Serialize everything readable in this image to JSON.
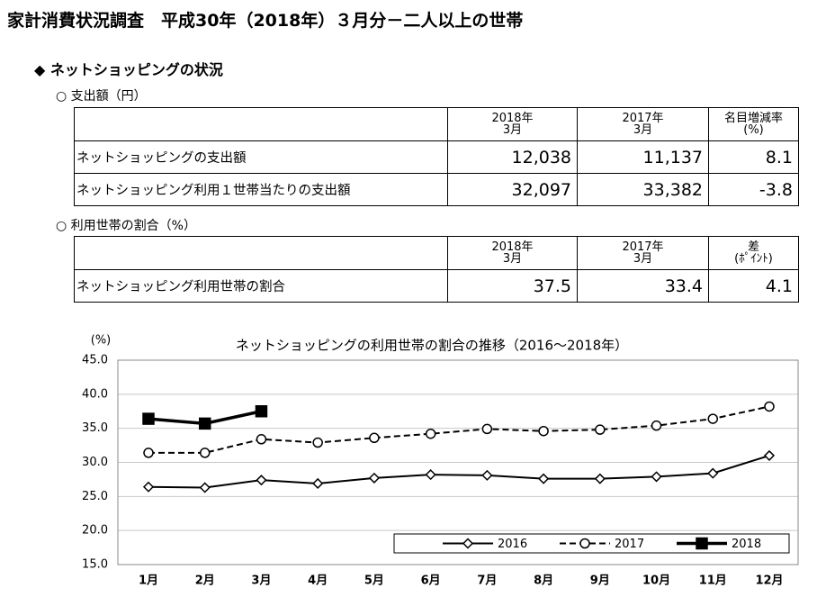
{
  "header": {
    "title": "家計消費状況調査　平成30年（2018年）３月分－二人以上の世帯"
  },
  "section": "◆ ネットショッピングの状況",
  "tables": [
    {
      "caption": "○ 支出額（円）",
      "columns": [
        [
          "2018年",
          "3月"
        ],
        [
          "2017年",
          "3月"
        ],
        [
          "名目増減率",
          "(%)"
        ]
      ],
      "rows": [
        {
          "label": "ネットショッピングの支出額",
          "cells": [
            "12,038",
            "11,137",
            "8.1"
          ]
        },
        {
          "label": "ネットショッピング利用１世帯当たりの支出額",
          "cells": [
            "32,097",
            "33,382",
            "-3.8"
          ]
        }
      ]
    },
    {
      "caption": "○ 利用世帯の割合（%）",
      "columns": [
        [
          "2018年",
          "3月"
        ],
        [
          "2017年",
          "3月"
        ],
        [
          "差",
          "(ﾎﾟｲﾝﾄ)"
        ]
      ],
      "rows": [
        {
          "label": "ネットショッピング利用世帯の割合",
          "cells": [
            "37.5",
            "33.4",
            "4.1"
          ]
        }
      ]
    }
  ],
  "chart_data": {
    "type": "line",
    "title": "ネットショッピングの利用世帯の割合の推移（2016～2018年）",
    "y_label": "(%)",
    "categories": [
      "1月",
      "2月",
      "3月",
      "4月",
      "5月",
      "6月",
      "7月",
      "8月",
      "9月",
      "10月",
      "11月",
      "12月"
    ],
    "series": [
      {
        "name": "2016",
        "color": "#000000",
        "marker": "diamond",
        "dashed": false,
        "bold": false,
        "values": [
          26.4,
          26.3,
          27.4,
          26.9,
          27.7,
          28.2,
          28.1,
          27.6,
          27.6,
          27.9,
          28.4,
          31.0
        ]
      },
      {
        "name": "2017",
        "color": "#000000",
        "marker": "circle",
        "dashed": true,
        "bold": false,
        "values": [
          31.4,
          31.4,
          33.4,
          32.9,
          33.6,
          34.2,
          34.9,
          34.6,
          34.8,
          35.4,
          36.4,
          38.2
        ]
      },
      {
        "name": "2018",
        "color": "#000000",
        "marker": "square",
        "dashed": false,
        "bold": true,
        "values": [
          36.4,
          35.7,
          37.5,
          null,
          null,
          null,
          null,
          null,
          null,
          null,
          null,
          null
        ]
      }
    ],
    "ylim": [
      15,
      45
    ],
    "yticks": [
      {
        "value": 15,
        "label": "15.0"
      },
      {
        "value": 20,
        "label": "20.0"
      },
      {
        "value": 25,
        "label": "25.0"
      },
      {
        "value": 30,
        "label": "30.0"
      },
      {
        "value": 35,
        "label": "35.0"
      },
      {
        "value": 40,
        "label": "40.0"
      },
      {
        "value": 45,
        "label": "45.0"
      }
    ],
    "grid": true,
    "legend": "lower right"
  }
}
